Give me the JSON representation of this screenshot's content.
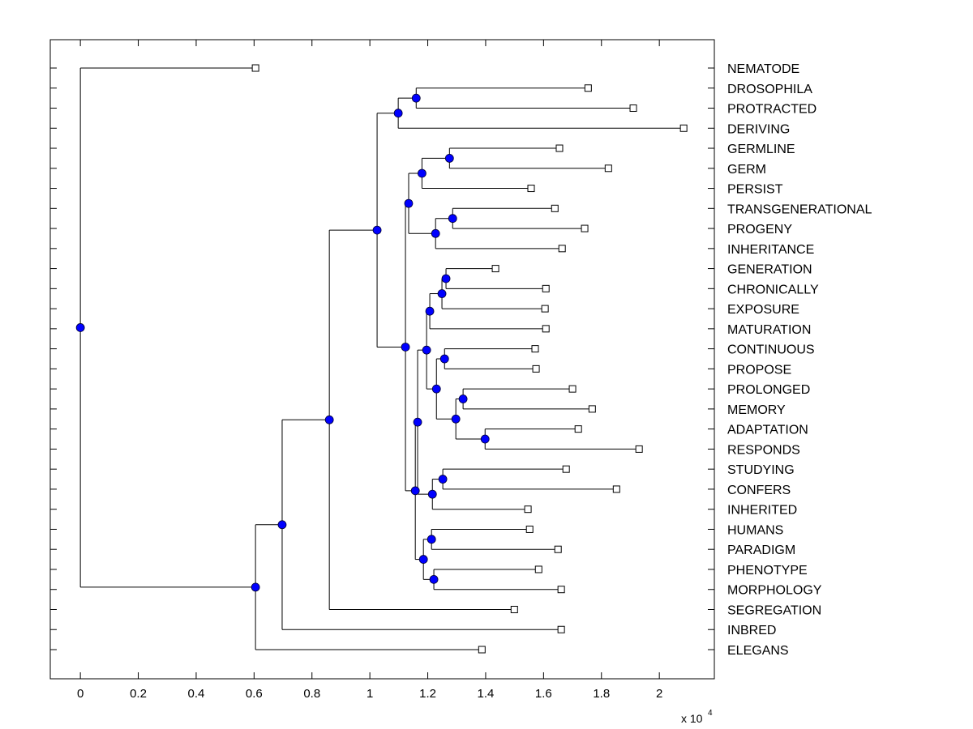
{
  "chart_data": {
    "type": "dendrogram",
    "title": "",
    "xlabel": "",
    "ylabel": "",
    "x_multiplier_label": "x 10",
    "x_multiplier_exponent": "4",
    "xlim": [
      -0.104,
      2.19
    ],
    "xticks": [
      0,
      0.2,
      0.4,
      0.6,
      0.8,
      1,
      1.2,
      1.4,
      1.6,
      1.8,
      2
    ],
    "xtick_labels": [
      "0",
      "0.2",
      "0.4",
      "0.6",
      "0.8",
      "1",
      "1.2",
      "1.4",
      "1.6",
      "1.8",
      "2"
    ],
    "grid": false,
    "colors": {
      "branch_node": "#0000ff",
      "leaf_node": "#ffffff",
      "line": "#000000"
    },
    "leaves": [
      {
        "name": "NEMATODE",
        "x": 0.605
      },
      {
        "name": "DROSOPHILA",
        "x": 1.754
      },
      {
        "name": "PROTRACTED",
        "x": 1.91
      },
      {
        "name": "DERIVING",
        "x": 2.084
      },
      {
        "name": "GERMLINE",
        "x": 1.655
      },
      {
        "name": "GERM",
        "x": 1.824
      },
      {
        "name": "PERSIST",
        "x": 1.557
      },
      {
        "name": "TRANSGENERATIONAL",
        "x": 1.639
      },
      {
        "name": "PROGENY",
        "x": 1.742
      },
      {
        "name": "INHERITANCE",
        "x": 1.664
      },
      {
        "name": "GENERATION",
        "x": 1.434
      },
      {
        "name": "CHRONICALLY",
        "x": 1.608
      },
      {
        "name": "EXPOSURE",
        "x": 1.605
      },
      {
        "name": "MATURATION",
        "x": 1.608
      },
      {
        "name": "CONTINUOUS",
        "x": 1.571
      },
      {
        "name": "PROPOSE",
        "x": 1.574
      },
      {
        "name": "PROLONGED",
        "x": 1.7
      },
      {
        "name": "MEMORY",
        "x": 1.768
      },
      {
        "name": "ADAPTATION",
        "x": 1.72
      },
      {
        "name": "RESPONDS",
        "x": 1.93
      },
      {
        "name": "STUDYING",
        "x": 1.678
      },
      {
        "name": "CONFERS",
        "x": 1.852
      },
      {
        "name": "INHERITED",
        "x": 1.546
      },
      {
        "name": "HUMANS",
        "x": 1.552
      },
      {
        "name": "PARADIGM",
        "x": 1.65
      },
      {
        "name": "PHENOTYPE",
        "x": 1.583
      },
      {
        "name": "MORPHOLOGY",
        "x": 1.661
      },
      {
        "name": "SEGREGATION",
        "x": 1.499
      },
      {
        "name": "INBRED",
        "x": 1.661
      },
      {
        "name": "ELEGANS",
        "x": 1.387
      }
    ],
    "tree": {
      "x": 0.0,
      "children": [
        {
          "leaf": 0
        },
        {
          "x": 0.605,
          "children": [
            {
              "x": 0.697,
              "children": [
                {
                  "x": 0.86,
                  "children": [
                    {
                      "x": 1.025,
                      "children": [
                        {
                          "x": 1.098,
                          "children": [
                            {
                              "x": 1.16,
                              "children": [
                                {
                                  "leaf": 1
                                },
                                {
                                  "leaf": 2
                                }
                              ]
                            },
                            {
                              "leaf": 3
                            }
                          ]
                        },
                        {
                          "x": 1.123,
                          "children": [
                            {
                              "x": 1.134,
                              "children": [
                                {
                                  "x": 1.18,
                                  "children": [
                                    {
                                      "x": 1.275,
                                      "children": [
                                        {
                                          "leaf": 4
                                        },
                                        {
                                          "leaf": 5
                                        }
                                      ]
                                    },
                                    {
                                      "leaf": 6
                                    }
                                  ]
                                },
                                {
                                  "x": 1.227,
                                  "children": [
                                    {
                                      "x": 1.286,
                                      "children": [
                                        {
                                          "leaf": 7
                                        },
                                        {
                                          "leaf": 8
                                        }
                                      ]
                                    },
                                    {
                                      "leaf": 9
                                    }
                                  ]
                                }
                              ]
                            },
                            {
                              "x": 1.157,
                              "children": [
                                {
                                  "x": 1.165,
                                  "children": [
                                    {
                                      "x": 1.196,
                                      "children": [
                                        {
                                          "x": 1.207,
                                          "children": [
                                            {
                                              "x": 1.249,
                                              "children": [
                                                {
                                                  "x": 1.263,
                                                  "children": [
                                                    {
                                                      "leaf": 10
                                                    },
                                                    {
                                                      "leaf": 11
                                                    }
                                                  ]
                                                },
                                                {
                                                  "leaf": 12
                                                }
                                              ]
                                            },
                                            {
                                              "leaf": 13
                                            }
                                          ]
                                        },
                                        {
                                          "x": 1.23,
                                          "children": [
                                            {
                                              "x": 1.258,
                                              "children": [
                                                {
                                                  "leaf": 14
                                                },
                                                {
                                                  "leaf": 15
                                                }
                                              ]
                                            },
                                            {
                                              "x": 1.297,
                                              "children": [
                                                {
                                                  "x": 1.322,
                                                  "children": [
                                                    {
                                                      "leaf": 16
                                                    },
                                                    {
                                                      "leaf": 17
                                                    }
                                                  ]
                                                },
                                                {
                                                  "x": 1.398,
                                                  "children": [
                                                    {
                                                      "leaf": 18
                                                    },
                                                    {
                                                      "leaf": 19
                                                    }
                                                  ]
                                                }
                                              ]
                                            }
                                          ]
                                        }
                                      ]
                                    },
                                    {
                                      "x": 1.216,
                                      "children": [
                                        {
                                          "x": 1.252,
                                          "children": [
                                            {
                                              "leaf": 20
                                            },
                                            {
                                              "leaf": 21
                                            }
                                          ]
                                        },
                                        {
                                          "leaf": 22
                                        }
                                      ]
                                    }
                                  ]
                                },
                                {
                                  "x": 1.185,
                                  "children": [
                                    {
                                      "x": 1.213,
                                      "children": [
                                        {
                                          "leaf": 23
                                        },
                                        {
                                          "leaf": 24
                                        }
                                      ]
                                    },
                                    {
                                      "x": 1.221,
                                      "children": [
                                        {
                                          "leaf": 25
                                        },
                                        {
                                          "leaf": 26
                                        }
                                      ]
                                    }
                                  ]
                                }
                              ]
                            }
                          ]
                        }
                      ]
                    },
                    {
                      "leaf": 27
                    }
                  ]
                },
                {
                  "leaf": 28
                }
              ]
            },
            {
              "leaf": 29
            }
          ]
        }
      ]
    }
  }
}
